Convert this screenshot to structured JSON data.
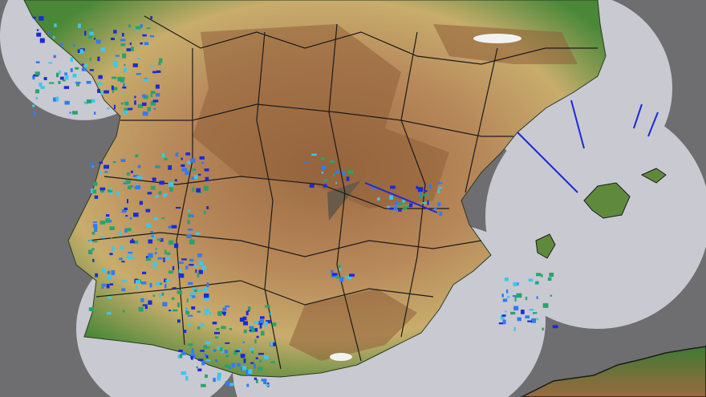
{
  "map": {
    "background_color": "#6e6e70",
    "radar_coverage_color": "#c9c9d2",
    "land_lowland_color": "#4f8a3a",
    "land_highland_color": "#a9784a",
    "land_mid_color": "#c9a46a",
    "precipitation_colors": [
      "#1a2ad8",
      "#2f7cf0",
      "#3fc7e8",
      "#2aa36a"
    ],
    "border_color": "#1b1b1b"
  }
}
